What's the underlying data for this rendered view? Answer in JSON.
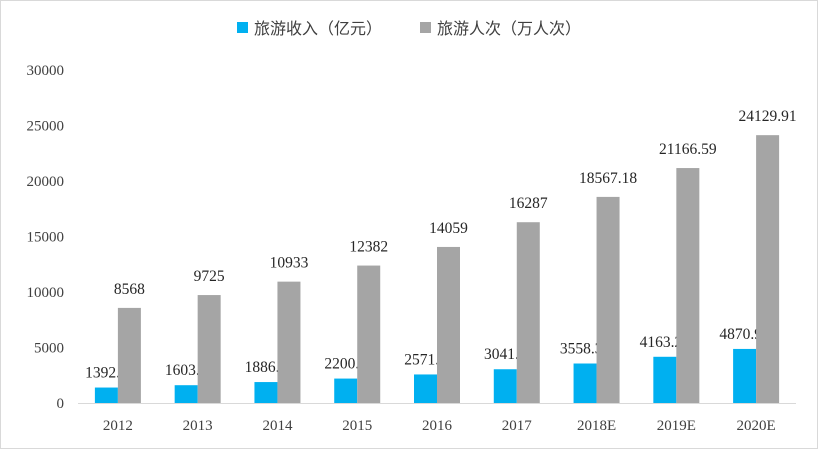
{
  "chart_data": {
    "type": "bar",
    "title": "",
    "xlabel": "",
    "ylabel": "",
    "categories": [
      "2012",
      "2013",
      "2014",
      "2015",
      "2016",
      "2017",
      "2018E",
      "2019E",
      "2020E"
    ],
    "series": [
      {
        "name": "旅游收入（亿元）",
        "color": "#00b0f0",
        "values": [
          1392.3,
          1603.7,
          1886.3,
          2200.7,
          2571.8,
          3041.3,
          3558.32,
          4163.24,
          4870.99
        ],
        "labels": [
          "1392.3",
          "1603.7",
          "1886.3",
          "2200.7",
          "2571.8",
          "3041.3",
          "3558.32",
          "4163.24",
          "4870.99"
        ]
      },
      {
        "name": "旅游人次（万人次）",
        "color": "#a5a5a5",
        "values": [
          8568,
          9725,
          10933,
          12382,
          14059,
          16287,
          18567.18,
          21166.59,
          24129.91
        ],
        "labels": [
          "8568",
          "9725",
          "10933",
          "12382",
          "14059",
          "16287",
          "18567.18",
          "21166.59",
          "24129.91"
        ]
      }
    ],
    "ylim": [
      0,
      30000
    ],
    "yticks": [
      0,
      5000,
      10000,
      15000,
      20000,
      25000,
      30000
    ],
    "ytick_labels": [
      "0",
      "5000",
      "10000",
      "15000",
      "20000",
      "25000",
      "30000"
    ],
    "grid": false,
    "legend": "top-center"
  }
}
